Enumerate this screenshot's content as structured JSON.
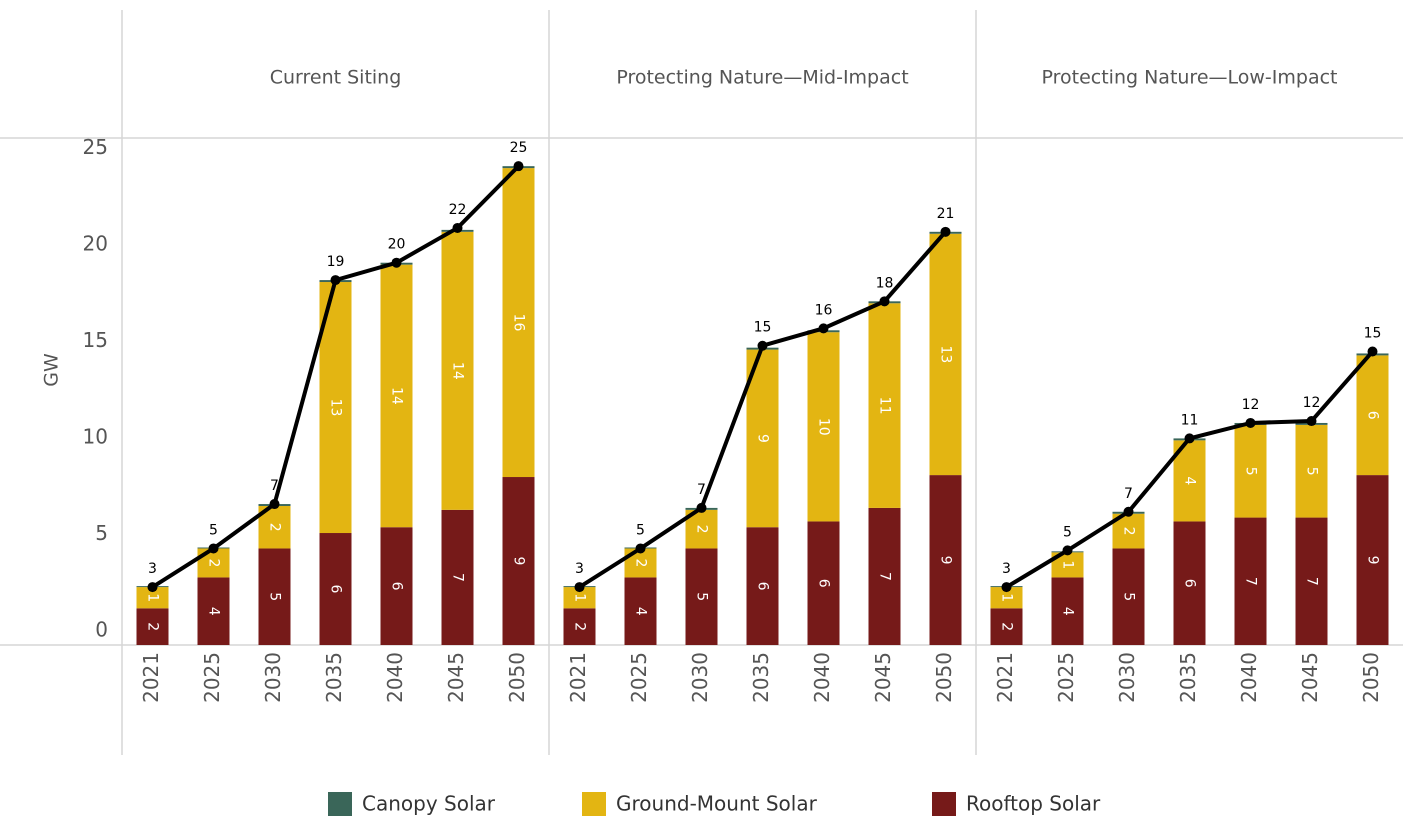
{
  "chart_data": {
    "type": "bar",
    "stacked": true,
    "ylabel": "GW",
    "ylim": [
      0,
      26
    ],
    "yticks": [
      0,
      5,
      10,
      15,
      20,
      25
    ],
    "categories": [
      "2021",
      "2025",
      "2030",
      "2035",
      "2040",
      "2045",
      "2050"
    ],
    "series": [
      {
        "name": "Canopy Solar",
        "color": "#3a6659"
      },
      {
        "name": "Ground-Mount Solar",
        "color": "#e3b512"
      },
      {
        "name": "Rooftop Solar",
        "color": "#761a19"
      }
    ],
    "line_color": "#000000",
    "panels": [
      {
        "title": "Current Siting",
        "series": [
          {
            "values": [
              0.05,
              0.05,
              0.1,
              0.1,
              0.1,
              0.1,
              0.1
            ]
          },
          {
            "values": [
              1.1,
              1.5,
              2.2,
              13.0,
              13.6,
              14.4,
              16.0
            ],
            "value_labels": [
              "1",
              "2",
              "2",
              "13",
              "14",
              "14",
              "16"
            ]
          },
          {
            "values": [
              1.9,
              3.5,
              5.0,
              5.8,
              6.1,
              7.0,
              8.7
            ],
            "value_labels": [
              "2",
              "4",
              "5",
              "6",
              "6",
              "7",
              "9"
            ]
          }
        ],
        "line": {
          "values": [
            3.0,
            5.0,
            7.3,
            18.9,
            19.8,
            21.6,
            24.8
          ],
          "value_labels": [
            "3",
            "5",
            "7",
            "19",
            "20",
            "22",
            "25"
          ]
        }
      },
      {
        "title": "Protecting Nature—Mid-Impact",
        "series": [
          {
            "values": [
              0.05,
              0.05,
              0.1,
              0.1,
              0.1,
              0.1,
              0.1
            ]
          },
          {
            "values": [
              1.1,
              1.5,
              2.0,
              9.2,
              9.8,
              10.6,
              12.5
            ],
            "value_labels": [
              "1",
              "2",
              "2",
              "9",
              "10",
              "11",
              "13"
            ]
          },
          {
            "values": [
              1.9,
              3.5,
              5.0,
              6.1,
              6.4,
              7.1,
              8.8
            ],
            "value_labels": [
              "2",
              "4",
              "5",
              "6",
              "6",
              "7",
              "9"
            ]
          }
        ],
        "line": {
          "values": [
            3.0,
            5.0,
            7.1,
            15.5,
            16.4,
            17.8,
            21.4
          ],
          "value_labels": [
            "3",
            "5",
            "7",
            "15",
            "16",
            "18",
            "21"
          ]
        }
      },
      {
        "title": "Protecting Nature—Low-Impact",
        "series": [
          {
            "values": [
              0.05,
              0.05,
              0.1,
              0.1,
              0.1,
              0.1,
              0.1
            ]
          },
          {
            "values": [
              1.1,
              1.3,
              1.8,
              4.2,
              4.8,
              4.8,
              6.2
            ],
            "value_labels": [
              "1",
              "1",
              "2",
              "4",
              "5",
              "5",
              "6"
            ]
          },
          {
            "values": [
              1.9,
              3.5,
              5.0,
              6.4,
              6.6,
              6.6,
              8.8
            ],
            "value_labels": [
              "2",
              "4",
              "5",
              "6",
              "7",
              "7",
              "9"
            ]
          }
        ],
        "line": {
          "values": [
            3.0,
            4.9,
            6.9,
            10.7,
            11.5,
            11.6,
            15.2
          ],
          "value_labels": [
            "3",
            "5",
            "7",
            "11",
            "12",
            "12",
            "15"
          ]
        }
      }
    ]
  }
}
